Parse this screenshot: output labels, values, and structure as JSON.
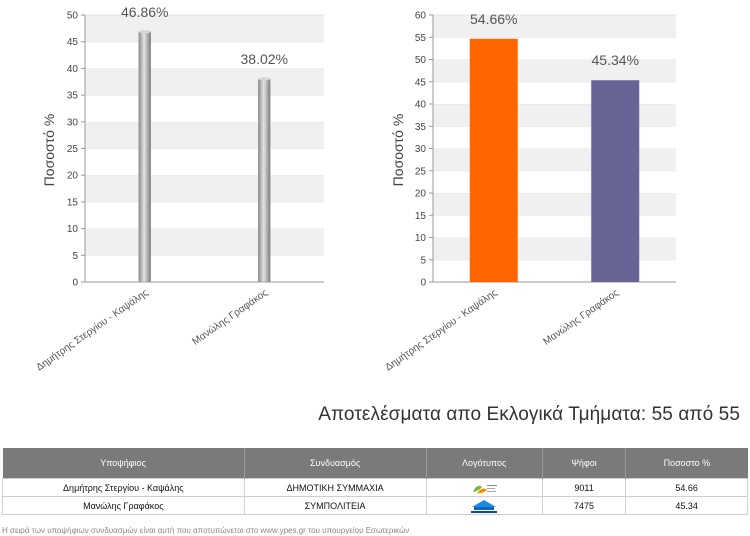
{
  "chart_data": [
    {
      "type": "bar",
      "categories": [
        "Δημήτρης Στεργίου - Καψάλης",
        "Μανώλης Γραφάκος"
      ],
      "values": [
        46.86,
        38.02
      ],
      "data_labels": [
        "46.86%",
        "38.02%"
      ],
      "ylabel": "Ποσοστό %",
      "ylim": [
        0,
        50
      ],
      "yticks": [
        0,
        5,
        10,
        15,
        20,
        25,
        30,
        35,
        40,
        45,
        50
      ],
      "grid": "alternating horizontal bands",
      "bar_colors": [
        "#a8a8a8",
        "#a8a8a8"
      ]
    },
    {
      "type": "bar",
      "categories": [
        "Δημήτρης Στεργίου - Καψάλης",
        "Μανώλης Γραφάκος"
      ],
      "values": [
        54.66,
        45.34
      ],
      "data_labels": [
        "54.66%",
        "45.34%"
      ],
      "ylabel": "Ποσοστό %",
      "ylim": [
        0,
        60
      ],
      "yticks": [
        0,
        5,
        10,
        15,
        20,
        25,
        30,
        35,
        40,
        45,
        50,
        55,
        60
      ],
      "grid": "alternating horizontal bands",
      "bar_colors": [
        "#ff6600",
        "#676496"
      ]
    }
  ],
  "results_title": "Αποτελέσματα απο Εκλογικά Τμήματα: 55 από 55",
  "table": {
    "headers": [
      "Υποψήφιος",
      "Συνδυασμός",
      "Λογότυπος",
      "Ψήφοι",
      "Ποσοστο %"
    ],
    "rows": [
      {
        "candidate": "Δημήτρης Στεργίου - Καψάλης",
        "party": "ΔΗΜΟΤΙΚΗ ΣΥΜΜΑΧΙΑ",
        "logo": "dimotiki-symmaxia-logo",
        "votes": "9011",
        "percent": "54.66"
      },
      {
        "candidate": "Μανώλης Γραφάκος",
        "party": "ΣΥΜΠΟΛΙΤΕΙΑ",
        "logo": "sympoliteia-logo",
        "votes": "7475",
        "percent": "45.34"
      }
    ]
  },
  "footnote": "Η σειρά των υποψήφιων συνδυασμών είναι αυτή που αποτυπώνεται στο www.ypes.gr του υπουργείου Εσωτερικών"
}
